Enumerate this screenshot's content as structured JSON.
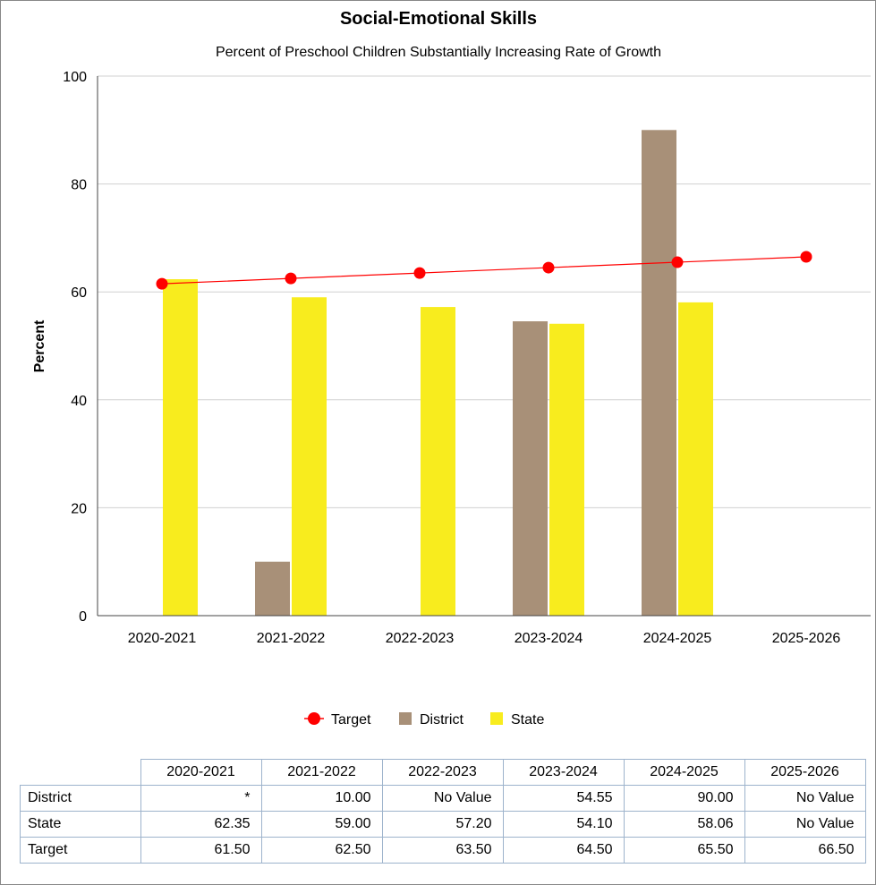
{
  "chart_data": {
    "type": "bar",
    "title": "Social-Emotional Skills",
    "subtitle": "Percent of Preschool Children Substantially Increasing Rate of Growth",
    "ylabel": "Percent",
    "xlabel": "",
    "ylim": [
      0,
      100
    ],
    "yticks": [
      0,
      20,
      40,
      60,
      80,
      100
    ],
    "grid": true,
    "legend_position": "bottom",
    "categories": [
      "2020-2021",
      "2021-2022",
      "2022-2023",
      "2023-2024",
      "2024-2025",
      "2025-2026"
    ],
    "series": [
      {
        "name": "Target",
        "kind": "line",
        "color": "#ff0000",
        "values": [
          61.5,
          62.5,
          63.5,
          64.5,
          65.5,
          66.5
        ]
      },
      {
        "name": "District",
        "kind": "bar",
        "color": "#a89078",
        "values": [
          null,
          10.0,
          null,
          54.55,
          90.0,
          null
        ]
      },
      {
        "name": "State",
        "kind": "bar",
        "color": "#f8ec1e",
        "values": [
          62.35,
          59.0,
          57.2,
          54.1,
          58.06,
          null
        ]
      }
    ]
  },
  "table": {
    "headers": [
      "2020-2021",
      "2021-2022",
      "2022-2023",
      "2023-2024",
      "2024-2025",
      "2025-2026"
    ],
    "rows": [
      {
        "label": "District",
        "cells": [
          "*",
          "10.00",
          "No Value",
          "54.55",
          "90.00",
          "No Value"
        ]
      },
      {
        "label": "State",
        "cells": [
          "62.35",
          "59.00",
          "57.20",
          "54.10",
          "58.06",
          "No Value"
        ]
      },
      {
        "label": "Target",
        "cells": [
          "61.50",
          "62.50",
          "63.50",
          "64.50",
          "65.50",
          "66.50"
        ]
      }
    ]
  }
}
